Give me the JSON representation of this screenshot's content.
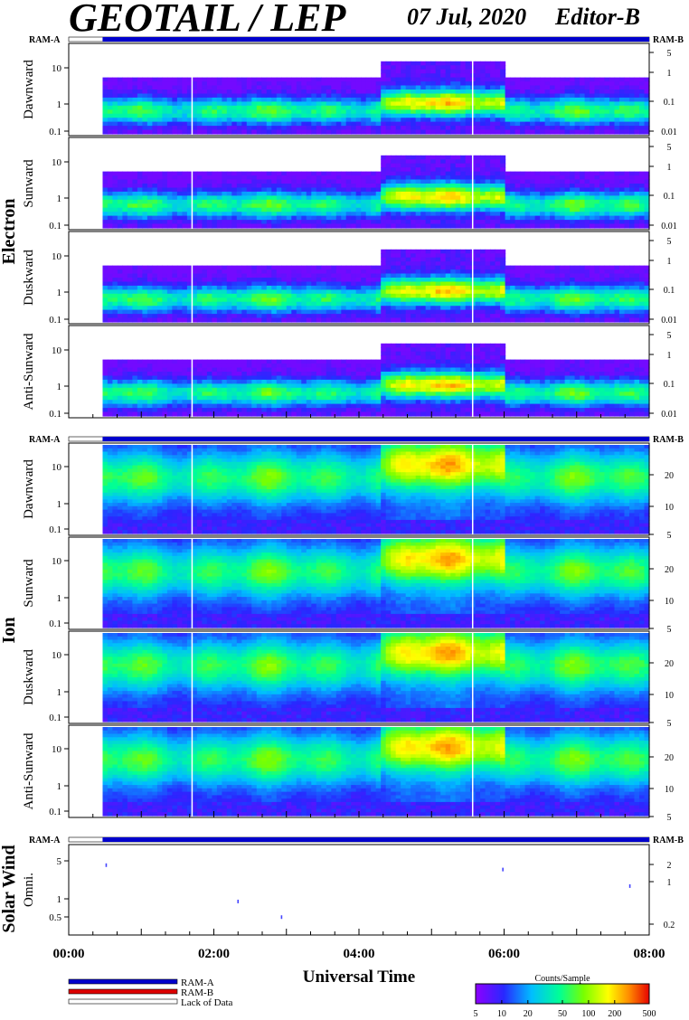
{
  "header": {
    "title": "GEOTAIL / LEP",
    "date": "07 Jul, 2020",
    "editor": "Editor-B"
  },
  "colors": {
    "ram_a": "#0000cc",
    "ram_b": "#dd0000",
    "background": "#ffffff"
  },
  "ram_markers": {
    "left": "RAM-A",
    "right": "RAM-B"
  },
  "chart_data": {
    "type": "heatmap",
    "x_axis": {
      "label": "Universal Time",
      "range": [
        "00:00",
        "08:00"
      ],
      "tick_labels": [
        "00:00",
        "02:00",
        "04:00",
        "06:00",
        "08:00"
      ],
      "data_start": "00:28",
      "gap_lines": [
        "01:42",
        "05:34"
      ]
    },
    "groups": [
      {
        "name": "Electron",
        "ram_status": "RAM-A throughout",
        "left_ticks": [
          "10",
          "1",
          "0.1"
        ],
        "right_ticks": [
          "5",
          "1",
          "0.1",
          "0.01"
        ],
        "panels": [
          "Dawnward",
          "Sunward",
          "Duskward",
          "Anti-Sunward"
        ]
      },
      {
        "name": "Ion",
        "ram_status": "RAM-A throughout",
        "left_ticks": [
          "10",
          "1",
          "0.1"
        ],
        "right_ticks": [
          "20",
          "10",
          "5"
        ],
        "panels": [
          "Dawnward",
          "Sunward",
          "Duskward",
          "Anti-Sunward"
        ]
      },
      {
        "name": "Solar Wind",
        "ram_status": "RAM-A throughout",
        "left_ticks": [
          "5",
          "1",
          "0.5"
        ],
        "right_ticks": [
          "2",
          "1",
          "0.2"
        ],
        "panels": [
          "Omni."
        ],
        "points": [
          {
            "t": "00:31",
            "v": 4.5
          },
          {
            "t": "02:20",
            "v": 1.1
          },
          {
            "t": "02:56",
            "v": 0.6
          },
          {
            "t": "05:59",
            "v": 3.8
          },
          {
            "t": "07:44",
            "v": 2.0
          }
        ]
      }
    ],
    "colorbar": {
      "title": "Counts/Sample",
      "ticks": [
        "5",
        "10",
        "20",
        "50",
        "100",
        "200",
        "500"
      ],
      "scale": "log",
      "range": [
        5,
        500
      ]
    }
  },
  "legend": {
    "items": [
      {
        "label": "RAM-A",
        "color": "#0000cc"
      },
      {
        "label": "RAM-B",
        "color": "#dd0000"
      },
      {
        "label": "Lack of Data",
        "color": "#ffffff"
      }
    ]
  }
}
